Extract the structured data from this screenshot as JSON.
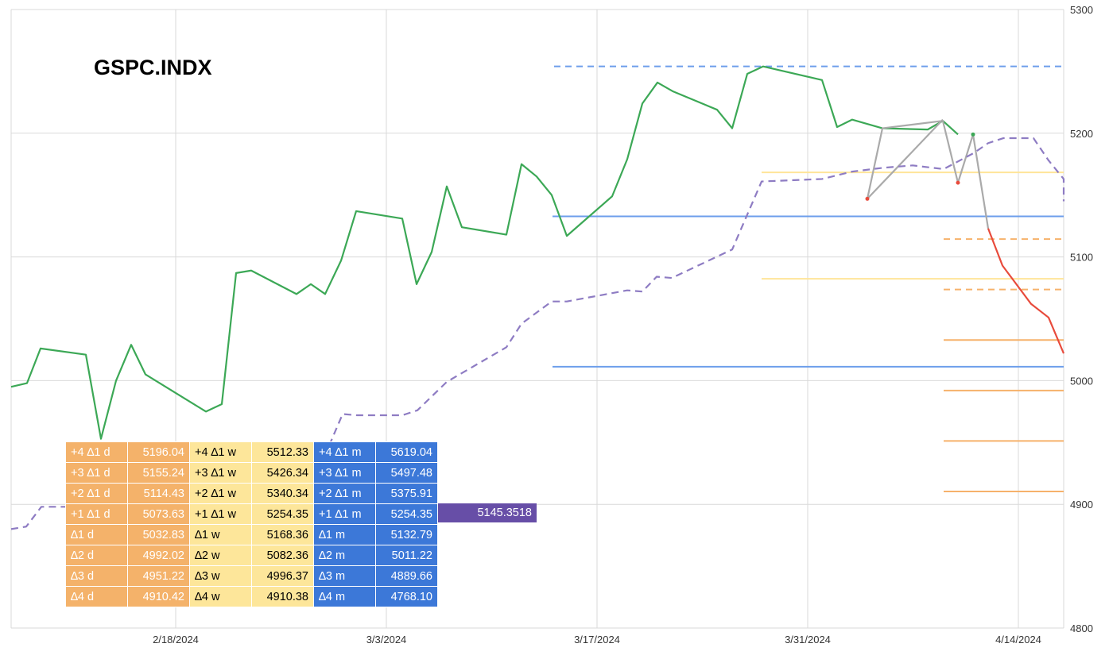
{
  "chart_data": {
    "type": "line",
    "title": "GSPC.INDX",
    "ylim": [
      4800,
      5300
    ],
    "yticks": [
      "5300",
      "5200",
      "5100",
      "5000",
      "4900",
      "4800"
    ],
    "xticks": [
      "2/18/2024",
      "3/3/2024",
      "3/17/2024",
      "3/31/2024",
      "4/14/2024"
    ],
    "grid": true,
    "series": [
      {
        "name": "",
        "color": "#3ca856",
        "values_y": [
          4995,
          4998,
          5026,
          5021,
          4953,
          5000,
          5029,
          5005,
          4975,
          4981,
          5087,
          5089,
          5070,
          5078,
          5070,
          5097,
          5137,
          5131,
          5078,
          5104,
          5157,
          5124,
          5118,
          5175,
          5165,
          5150,
          5117,
          5149,
          5179,
          5224,
          5241,
          5234,
          5219,
          5204,
          5248,
          5254,
          5243,
          5205,
          5211,
          5204,
          5203,
          5210,
          5199
        ],
        "x_dates": [
          "2/11/2024",
          "2/12/2024",
          "2/13/2024",
          "2/15/2024",
          "2/16/2024",
          "2/17/2024",
          "2/18/2024",
          "2/19/2024",
          "2/23/2024",
          "2/24/2024",
          "2/27/2024",
          "2/28/2024",
          "3/1/2024",
          "3/2/2024",
          "3/3/2024",
          "3/4/2024",
          "3/5/2024",
          "3/8/2024",
          "3/9/2024",
          "3/10/2024",
          "3/11/2024",
          "3/12/2024",
          "3/15/2024",
          "3/16/2024",
          "3/16/2024",
          "3/17/2024",
          "3/17/2024",
          "3/20/2024",
          "3/21/2024",
          "3/22/2024",
          "3/23/2024",
          "3/24/2024",
          "3/26/2024",
          "3/27/2024",
          "3/28/2024",
          "3/29/2024",
          "4/2/2024",
          "4/3/2024",
          "4/4/2024",
          "4/5/2024",
          "4/8/2024",
          "4/9/2024",
          "4/10/2024"
        ]
      },
      {
        "name": "",
        "color": "#aaaaaa",
        "values_y": [
          5211,
          5147,
          5204,
          5210,
          5160,
          5199,
          5123
        ]
      },
      {
        "name": "",
        "color": "#e84b3c",
        "values_y": [
          5123,
          5093,
          5062,
          5051,
          5022
        ]
      },
      {
        "name": "",
        "color": "#8e7cc3",
        "dashed": true,
        "values_y": [
          4880,
          4882,
          4898,
          4898,
          4897,
          4897,
          4897,
          4904,
          4940,
          4973,
          4972,
          4972,
          4976,
          4999,
          5027,
          5046,
          5064,
          5064,
          5073,
          5072,
          5084,
          5083,
          5106,
          5161,
          5163,
          5169,
          5172,
          5174,
          5171,
          5184,
          5192,
          5196,
          5196,
          5178,
          5163,
          5145
        ]
      }
    ],
    "levels": [
      {
        "y": 5254,
        "color": "#6d9eeb",
        "style": "dashed"
      },
      {
        "y": 5132.79,
        "color": "#6d9eeb",
        "style": "solid"
      },
      {
        "y": 5011.22,
        "color": "#6d9eeb",
        "style": "solid"
      },
      {
        "y": 5168.36,
        "color": "#ffe599",
        "style": "solid"
      },
      {
        "y": 5082.36,
        "color": "#ffe599",
        "style": "solid"
      },
      {
        "y": 5114.43,
        "color": "#f6b26b",
        "style": "dashed"
      },
      {
        "y": 5073.63,
        "color": "#f6b26b",
        "style": "dashed"
      },
      {
        "y": 5032.83,
        "color": "#f6b26b",
        "style": "solid"
      },
      {
        "y": 4992.02,
        "color": "#f6b26b",
        "style": "solid"
      },
      {
        "y": 4951.22,
        "color": "#f6b26b",
        "style": "solid"
      },
      {
        "y": 4910.42,
        "color": "#f6b26b",
        "style": "solid"
      }
    ]
  },
  "table": {
    "rows": [
      {
        "dl": "+4 ∆1 d",
        "dv": "5196.04",
        "wl": "+4 ∆1 w",
        "wv": "5512.33",
        "ml": "+4 ∆1 m",
        "mv": "5619.04"
      },
      {
        "dl": "+3 ∆1 d",
        "dv": "5155.24",
        "wl": "+3 ∆1 w",
        "wv": "5426.34",
        "ml": "+3 ∆1 m",
        "mv": "5497.48"
      },
      {
        "dl": "+2 ∆1 d",
        "dv": "5114.43",
        "wl": "+2 ∆1 w",
        "wv": "5340.34",
        "ml": "+2 ∆1 m",
        "mv": "5375.91"
      },
      {
        "dl": "+1 ∆1 d",
        "dv": "5073.63",
        "wl": "+1 ∆1 w",
        "wv": "5254.35",
        "ml": "+1 ∆1 m",
        "mv": "5254.35"
      },
      {
        "dl": "∆1 d",
        "dv": "5032.83",
        "wl": "∆1 w",
        "wv": "5168.36",
        "ml": "∆1 m",
        "mv": "5132.79"
      },
      {
        "dl": "∆2 d",
        "dv": "4992.02",
        "wl": "∆2 w",
        "wv": "5082.36",
        "ml": "∆2 m",
        "mv": "5011.22"
      },
      {
        "dl": "∆3 d",
        "dv": "4951.22",
        "wl": "∆3 w",
        "wv": "4996.37",
        "ml": "∆3 m",
        "mv": "4889.66"
      },
      {
        "dl": "∆4 d",
        "dv": "4910.42",
        "wl": "∆4 w",
        "wv": "4910.38",
        "ml": "∆4 m",
        "mv": "4768.10"
      }
    ],
    "extra_value": "5145.3518"
  }
}
